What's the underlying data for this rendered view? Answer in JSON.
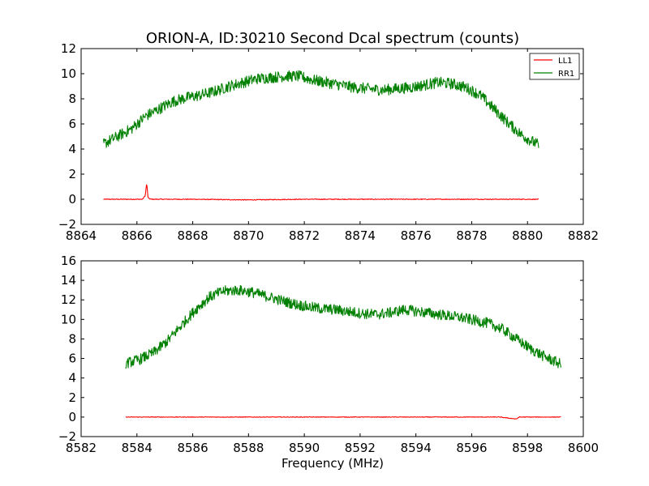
{
  "chart_data": [
    {
      "type": "line",
      "title": "ORION-A, ID:30210 Second Dcal spectrum (counts)",
      "xlabel": "",
      "ylabel": "",
      "xlim": [
        8864,
        8882
      ],
      "ylim": [
        -2,
        12
      ],
      "xticks": [
        "8864",
        "8866",
        "8868",
        "8870",
        "8872",
        "8874",
        "8876",
        "8878",
        "8880",
        "8882"
      ],
      "yticks": [
        "−2",
        "0",
        "2",
        "4",
        "6",
        "8",
        "10",
        "12"
      ],
      "legend": {
        "placement": "top-right",
        "entries": [
          "LL1",
          "RR1"
        ]
      },
      "grid": false,
      "series": [
        {
          "name": "LL1",
          "color": "#ff0000",
          "x": [
            8864.8,
            8866.2,
            8866.3,
            8866.35,
            8866.4,
            8866.5,
            8868,
            8870,
            8872,
            8874,
            8876,
            8878,
            8880.4
          ],
          "y": [
            0.0,
            0.0,
            0.3,
            1.3,
            0.1,
            0.0,
            0.0,
            -0.05,
            0.0,
            0.0,
            0.0,
            0.0,
            0.0
          ],
          "noise": 0.03
        },
        {
          "name": "RR1",
          "color": "#008000",
          "x": [
            8864.8,
            8865.3,
            8865.8,
            8866.3,
            8866.8,
            8867.3,
            8867.8,
            8868.3,
            8868.8,
            8869.3,
            8869.8,
            8870.3,
            8870.8,
            8871.3,
            8871.8,
            8872.3,
            8872.8,
            8873.3,
            8873.8,
            8874.3,
            8874.8,
            8875.3,
            8875.8,
            8876.3,
            8876.8,
            8877.3,
            8877.8,
            8878.3,
            8878.8,
            8879.3,
            8879.8,
            8880.4
          ],
          "y": [
            4.4,
            5.0,
            5.6,
            6.6,
            7.2,
            7.8,
            8.1,
            8.3,
            8.6,
            9.0,
            9.3,
            9.6,
            9.7,
            9.8,
            9.8,
            9.5,
            9.3,
            9.1,
            8.9,
            8.8,
            8.7,
            8.8,
            8.9,
            9.1,
            9.3,
            9.2,
            8.9,
            8.3,
            7.2,
            6.1,
            5.1,
            4.3
          ],
          "noise": 0.45
        }
      ]
    },
    {
      "type": "line",
      "title": "",
      "xlabel": "Frequency (MHz)",
      "ylabel": "",
      "xlim": [
        8582,
        8600
      ],
      "ylim": [
        -2,
        16
      ],
      "xticks": [
        "8582",
        "8584",
        "8586",
        "8588",
        "8590",
        "8592",
        "8594",
        "8596",
        "8598",
        "8600"
      ],
      "yticks": [
        "−2",
        "0",
        "2",
        "4",
        "6",
        "8",
        "10",
        "12",
        "14",
        "16"
      ],
      "grid": false,
      "series": [
        {
          "name": "LL1",
          "color": "#ff0000",
          "x": [
            8583.6,
            8585,
            8587,
            8589,
            8591,
            8593,
            8595,
            8597,
            8597.6,
            8597.7,
            8598,
            8599.2
          ],
          "y": [
            0.0,
            0.0,
            0.0,
            0.0,
            0.0,
            0.0,
            0.0,
            0.0,
            -0.2,
            0.0,
            0.0,
            0.0
          ],
          "noise": 0.03
        },
        {
          "name": "RR1",
          "color": "#008000",
          "x": [
            8583.6,
            8584.1,
            8584.6,
            8585.1,
            8585.6,
            8586.1,
            8586.6,
            8587.1,
            8587.6,
            8588.1,
            8588.6,
            8589.1,
            8589.6,
            8590.1,
            8590.6,
            8591.1,
            8591.6,
            8592.1,
            8592.6,
            8593.1,
            8593.6,
            8594.1,
            8594.6,
            8595.1,
            8595.6,
            8596.1,
            8596.6,
            8597.1,
            8597.6,
            8598.1,
            8598.6,
            8599.2
          ],
          "y": [
            5.5,
            5.9,
            6.6,
            7.8,
            9.4,
            11.0,
            12.3,
            12.9,
            13.0,
            12.8,
            12.4,
            12.0,
            11.6,
            11.3,
            11.1,
            11.0,
            10.8,
            10.6,
            10.5,
            10.7,
            11.0,
            10.8,
            10.6,
            10.4,
            10.2,
            9.9,
            9.6,
            9.0,
            8.0,
            7.0,
            6.2,
            5.4
          ],
          "noise": 0.55
        }
      ]
    }
  ]
}
